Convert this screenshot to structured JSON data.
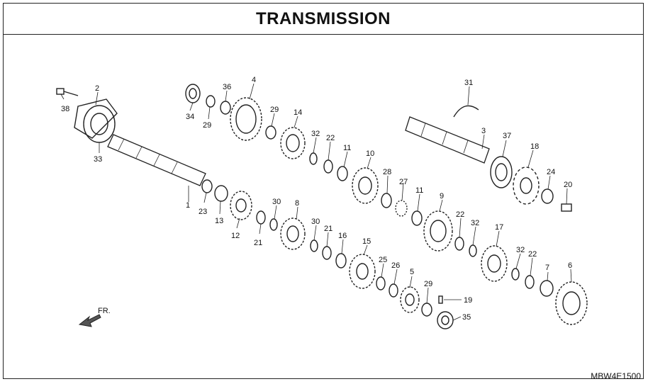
{
  "title": "TRANSMISSION",
  "diagram_code": "MBW4E1500",
  "direction_label": "FR.",
  "callouts": [
    "1",
    "2",
    "3",
    "4",
    "5",
    "6",
    "7",
    "8",
    "9",
    "10",
    "11",
    "11",
    "12",
    "13",
    "14",
    "15",
    "16",
    "17",
    "18",
    "19",
    "20",
    "21",
    "21",
    "22",
    "22",
    "22",
    "23",
    "24",
    "25",
    "26",
    "27",
    "28",
    "29",
    "29",
    "29",
    "30",
    "30",
    "31",
    "32",
    "32",
    "32",
    "33",
    "34",
    "35",
    "36",
    "37",
    "38"
  ]
}
